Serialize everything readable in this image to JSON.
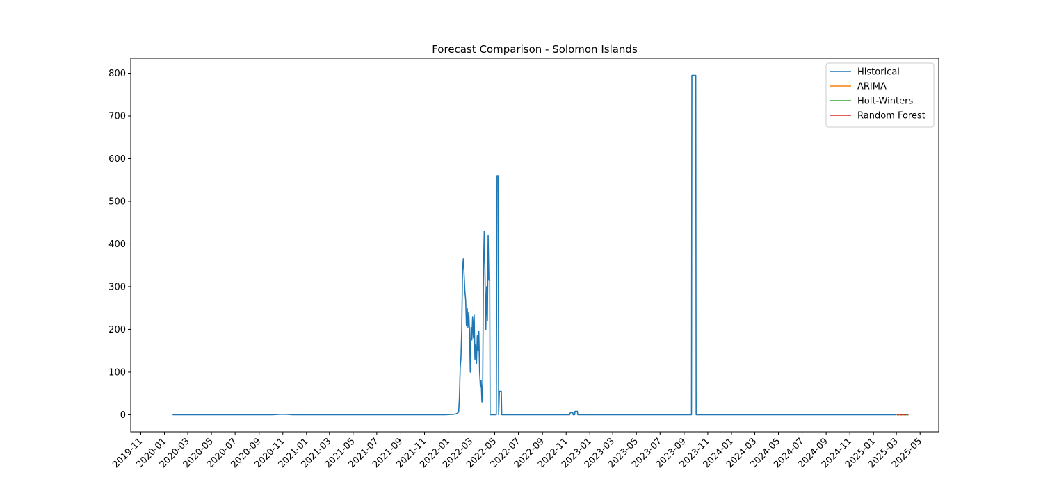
{
  "chart_data": {
    "type": "line",
    "title": "Forecast Comparison - Solomon Islands",
    "xlabel": "",
    "ylabel": "",
    "xlim": [
      "2019-10-06",
      "2025-06-18"
    ],
    "ylim": [
      -40,
      835
    ],
    "x_ticks": [
      "2019-11",
      "2020-01",
      "2020-03",
      "2020-05",
      "2020-07",
      "2020-09",
      "2020-11",
      "2021-01",
      "2021-03",
      "2021-05",
      "2021-07",
      "2021-09",
      "2021-11",
      "2022-01",
      "2022-03",
      "2022-05",
      "2022-07",
      "2022-09",
      "2022-11",
      "2023-01",
      "2023-03",
      "2023-05",
      "2023-07",
      "2023-09",
      "2023-11",
      "2024-01",
      "2024-03",
      "2024-05",
      "2024-07",
      "2024-09",
      "2024-11",
      "2025-01",
      "2025-03",
      "2025-05"
    ],
    "y_ticks": [
      0,
      100,
      200,
      300,
      400,
      500,
      600,
      700,
      800
    ],
    "grid": false,
    "legend_position": "top-right",
    "series": [
      {
        "name": "Historical",
        "color": "#1f77b4",
        "points": [
          [
            "2020-01-22",
            0
          ],
          [
            "2020-10-05",
            0
          ],
          [
            "2020-10-25",
            1
          ],
          [
            "2020-11-10",
            1
          ],
          [
            "2020-11-25",
            0
          ],
          [
            "2021-12-25",
            0
          ],
          [
            "2022-01-15",
            1
          ],
          [
            "2022-01-22",
            2
          ],
          [
            "2022-01-28",
            6
          ],
          [
            "2022-01-30",
            40
          ],
          [
            "2022-02-01",
            110
          ],
          [
            "2022-02-03",
            135
          ],
          [
            "2022-02-05",
            200
          ],
          [
            "2022-02-07",
            340
          ],
          [
            "2022-02-09",
            365
          ],
          [
            "2022-02-11",
            330
          ],
          [
            "2022-02-13",
            290
          ],
          [
            "2022-02-15",
            270
          ],
          [
            "2022-02-17",
            210
          ],
          [
            "2022-02-19",
            250
          ],
          [
            "2022-02-21",
            205
          ],
          [
            "2022-02-23",
            240
          ],
          [
            "2022-02-25",
            195
          ],
          [
            "2022-02-27",
            100
          ],
          [
            "2022-03-01",
            205
          ],
          [
            "2022-03-03",
            175
          ],
          [
            "2022-03-05",
            230
          ],
          [
            "2022-03-07",
            180
          ],
          [
            "2022-03-09",
            235
          ],
          [
            "2022-03-11",
            130
          ],
          [
            "2022-03-13",
            165
          ],
          [
            "2022-03-15",
            120
          ],
          [
            "2022-03-17",
            185
          ],
          [
            "2022-03-19",
            150
          ],
          [
            "2022-03-21",
            195
          ],
          [
            "2022-03-23",
            100
          ],
          [
            "2022-03-25",
            65
          ],
          [
            "2022-03-27",
            80
          ],
          [
            "2022-03-29",
            30
          ],
          [
            "2022-03-31",
            75
          ],
          [
            "2022-04-02",
            345
          ],
          [
            "2022-04-04",
            430
          ],
          [
            "2022-04-06",
            320
          ],
          [
            "2022-04-08",
            200
          ],
          [
            "2022-04-10",
            300
          ],
          [
            "2022-04-12",
            220
          ],
          [
            "2022-04-14",
            420
          ],
          [
            "2022-04-16",
            315
          ],
          [
            "2022-04-18",
            315
          ],
          [
            "2022-04-19",
            0
          ],
          [
            "2022-05-05",
            0
          ],
          [
            "2022-05-07",
            560
          ],
          [
            "2022-05-10",
            560
          ],
          [
            "2022-05-11",
            0
          ],
          [
            "2022-05-13",
            55
          ],
          [
            "2022-05-18",
            55
          ],
          [
            "2022-05-19",
            0
          ],
          [
            "2022-11-10",
            0
          ],
          [
            "2022-11-12",
            5
          ],
          [
            "2022-11-18",
            5
          ],
          [
            "2022-11-19",
            0
          ],
          [
            "2022-11-23",
            0
          ],
          [
            "2022-11-24",
            8
          ],
          [
            "2022-11-30",
            8
          ],
          [
            "2022-12-01",
            0
          ],
          [
            "2023-09-20",
            0
          ],
          [
            "2023-09-21",
            795
          ],
          [
            "2023-10-01",
            795
          ],
          [
            "2023-10-02",
            0
          ],
          [
            "2025-03-01",
            0
          ]
        ]
      },
      {
        "name": "ARIMA",
        "color": "#ff7f0e",
        "points": [
          [
            "2025-03-02",
            0
          ],
          [
            "2025-04-01",
            0
          ]
        ]
      },
      {
        "name": "Holt-Winters",
        "color": "#2ca02c",
        "points": [
          [
            "2025-03-02",
            0
          ],
          [
            "2025-04-01",
            0
          ]
        ]
      },
      {
        "name": "Random Forest",
        "color": "#d62728",
        "dashed": true,
        "points": [
          [
            "2025-03-02",
            0
          ],
          [
            "2025-04-01",
            0
          ]
        ]
      }
    ]
  }
}
